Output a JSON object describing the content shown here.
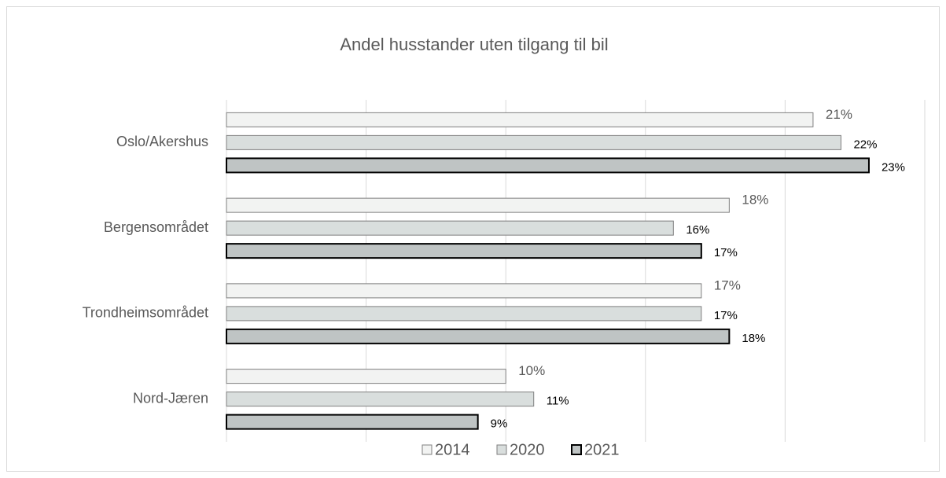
{
  "chart_data": {
    "type": "hbar",
    "title": "Andel husstander uten tilgang til bil",
    "categories": [
      "Oslo/Akershus",
      "Bergensområdet",
      "Trondheimsområdet",
      "Nord-Jæren"
    ],
    "series": [
      {
        "name": "2014",
        "color": "#f2f3f2",
        "values": [
          21,
          18,
          17,
          10
        ],
        "value_labels": [
          "21%",
          "18%",
          "17%",
          "10%"
        ]
      },
      {
        "name": "2020",
        "color": "#d9dedd",
        "values": [
          22,
          16,
          17,
          11
        ],
        "value_labels": [
          "22%",
          "16%",
          "17%",
          "11%"
        ]
      },
      {
        "name": "2021",
        "color": "#bfc4c4",
        "values": [
          23,
          17,
          18,
          9
        ],
        "value_labels": [
          "23%",
          "17%",
          "18%",
          "9%"
        ]
      }
    ],
    "xlim": [
      0,
      25
    ],
    "xticks": [
      0,
      5,
      10,
      15,
      20,
      25
    ],
    "grid": true,
    "legend": "bottom"
  }
}
